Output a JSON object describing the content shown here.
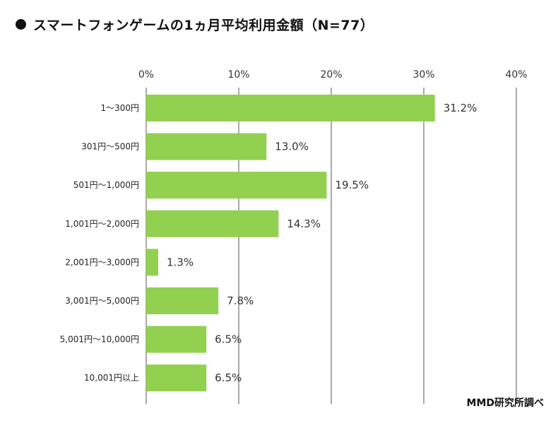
{
  "header": {
    "title": "スマートフォンゲームの1ヵ月平均利用金額（N=77）"
  },
  "footer": {
    "source": "MMD研究所調べ"
  },
  "colors": {
    "bar": "#92d050",
    "grid": "#555555"
  },
  "chart_data": {
    "type": "bar",
    "orientation": "horizontal",
    "title": "スマートフォンゲームの1ヵ月平均利用金額（N=77）",
    "categories": [
      "1～300円",
      "301円～500円",
      "501円～1,000円",
      "1,001円～2,000円",
      "2,001円～3,000円",
      "3,001円～5,000円",
      "5,001円～10,000円",
      "10,001円以上"
    ],
    "values": [
      31.2,
      13.0,
      19.5,
      14.3,
      1.3,
      7.8,
      6.5,
      6.5
    ],
    "data_labels": [
      "31.2%",
      "13.0%",
      "19.5%",
      "14.3%",
      "1.3%",
      "7.8%",
      "6.5%",
      "6.5%"
    ],
    "x_ticks": [
      "0%",
      "10%",
      "20%",
      "30%",
      "40%"
    ],
    "xlim": [
      0,
      40
    ],
    "xlabel": "",
    "ylabel": "",
    "grid": true,
    "legend": "none",
    "annotation": "MMD研究所調べ"
  }
}
